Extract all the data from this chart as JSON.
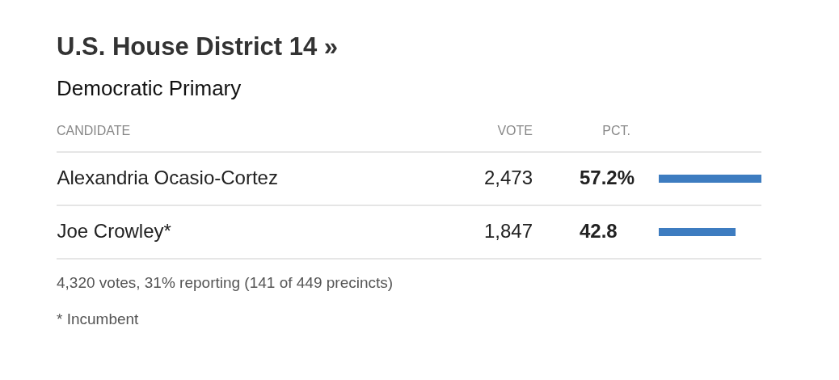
{
  "chart_data": {
    "type": "bar",
    "orientation": "horizontal",
    "title": "U.S. House District 14 »",
    "subtitle": "Democratic Primary",
    "categories": [
      "Alexandria Ocasio-Cortez",
      "Joe Crowley*"
    ],
    "values": [
      57.2,
      42.8
    ],
    "color": "#3d7cc0",
    "value_labels": [
      "57.2%",
      "42.8"
    ],
    "annotations": [
      "CANDIDATE",
      "VOTE",
      "PCT.",
      "2,473",
      "1,847",
      "4,320 votes, 31% reporting (141 of 449 precincts)",
      "* Incumbent"
    ]
  }
}
